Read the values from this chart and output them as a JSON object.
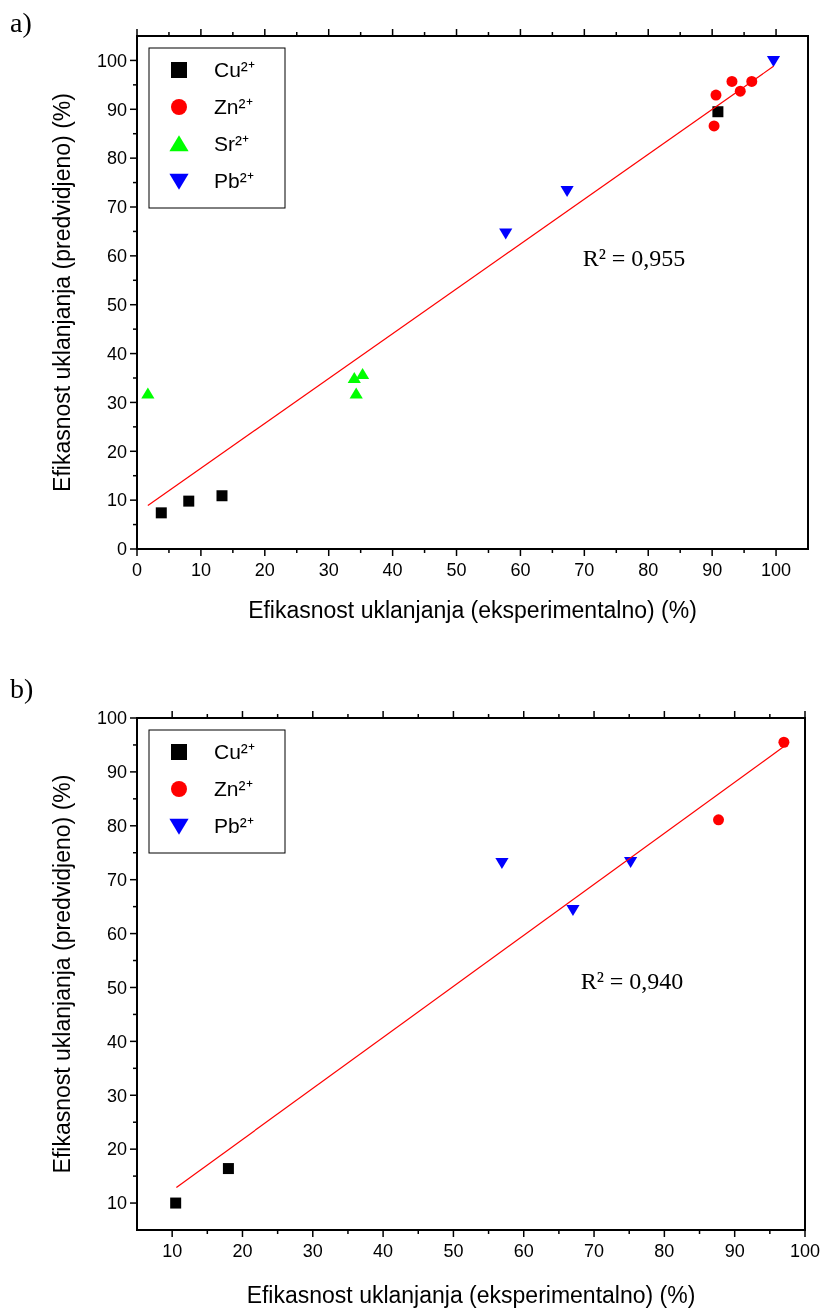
{
  "chart_data": [
    {
      "type": "scatter",
      "title": "a)",
      "xlabel": "Efikasnost uklanjanja (eksperimentalno) (%)",
      "ylabel": "Efikasnost uklanjanja (predvidjeno) (%)",
      "xlim": [
        0,
        105
      ],
      "ylim": [
        0,
        105
      ],
      "xticks": [
        0,
        {
          "value": 5,
          "label": null
        },
        10,
        {
          "value": 15,
          "label": null
        },
        20,
        {
          "value": 25,
          "label": null
        },
        30,
        {
          "value": 35,
          "label": null
        },
        40,
        {
          "value": 45,
          "label": null
        },
        50,
        {
          "value": 55,
          "label": null
        },
        60,
        {
          "value": 65,
          "label": null
        },
        70,
        {
          "value": 75,
          "label": null
        },
        80,
        {
          "value": 85,
          "label": null
        },
        90,
        {
          "value": 95,
          "label": null
        },
        100
      ],
      "yticks": [
        0,
        {
          "value": 5,
          "label": null
        },
        10,
        {
          "value": 15,
          "label": null
        },
        20,
        {
          "value": 25,
          "label": null
        },
        30,
        {
          "value": 35,
          "label": null
        },
        40,
        {
          "value": 45,
          "label": null
        },
        50,
        {
          "value": 55,
          "label": null
        },
        60,
        {
          "value": 65,
          "label": null
        },
        70,
        {
          "value": 75,
          "label": null
        },
        80,
        {
          "value": 85,
          "label": null
        },
        90,
        {
          "value": 95,
          "label": null
        },
        100
      ],
      "grid": false,
      "legend": "top left",
      "annotations": [
        "R² = 0,955"
      ],
      "series": [
        {
          "name": "Cu²⁺",
          "color": "#000000",
          "marker": "square",
          "x": [
            3.8,
            8.1,
            13.3,
            90.9
          ],
          "values": [
            7.4,
            9.8,
            10.9,
            89.5
          ]
        },
        {
          "name": "Zn²⁺",
          "color": "#ff0000",
          "marker": "circle",
          "x": [
            90.6,
            90.3,
            93.1,
            94.4,
            96.2
          ],
          "values": [
            92.9,
            86.6,
            95.7,
            93.7,
            95.7
          ]
        },
        {
          "name": "Sr²⁺",
          "color": "#00ff00",
          "marker": "triangle",
          "x": [
            1.7,
            34.0,
            35.3,
            34.3
          ],
          "values": [
            31.8,
            35.0,
            35.8,
            31.8
          ]
        },
        {
          "name": "Pb²⁺",
          "color": "#0000ff",
          "marker": "triangle-down",
          "x": [
            57.7,
            67.3,
            99.6
          ],
          "values": [
            64.6,
            73.3,
            99.9
          ]
        },
        {
          "type": "line",
          "color": "#ff0000",
          "marker": "none",
          "x": [
            1.7,
            99.6
          ],
          "values": [
            8.9,
            98.8
          ]
        }
      ]
    },
    {
      "type": "scatter",
      "title": "b)",
      "xlabel": "Efikasnost uklanjanja (eksperimentalno) (%)",
      "ylabel": "Efikasnost uklanjanja (predvidjeno) (%)",
      "xlim": [
        5,
        100
      ],
      "ylim": [
        5,
        100
      ],
      "xticks": [
        10,
        {
          "value": 15,
          "label": null
        },
        20,
        {
          "value": 25,
          "label": null
        },
        30,
        {
          "value": 35,
          "label": null
        },
        40,
        {
          "value": 45,
          "label": null
        },
        50,
        {
          "value": 55,
          "label": null
        },
        60,
        {
          "value": 65,
          "label": null
        },
        70,
        {
          "value": 75,
          "label": null
        },
        80,
        {
          "value": 85,
          "label": null
        },
        90,
        {
          "value": 95,
          "label": null
        },
        100
      ],
      "yticks": [
        10,
        {
          "value": 15,
          "label": null
        },
        20,
        {
          "value": 25,
          "label": null
        },
        30,
        {
          "value": 35,
          "label": null
        },
        40,
        {
          "value": 45,
          "label": null
        },
        50,
        {
          "value": 55,
          "label": null
        },
        60,
        {
          "value": 65,
          "label": null
        },
        70,
        {
          "value": 75,
          "label": null
        },
        80,
        {
          "value": 85,
          "label": null
        },
        90,
        {
          "value": 95,
          "label": null
        },
        100
      ],
      "grid": false,
      "legend": "top left",
      "annotations": [
        "R² = 0,940"
      ],
      "series": [
        {
          "name": "Cu²⁺",
          "color": "#000000",
          "marker": "square",
          "x": [
            10.5,
            18.0
          ],
          "values": [
            10.0,
            16.4
          ]
        },
        {
          "name": "Zn²⁺",
          "color": "#ff0000",
          "marker": "circle",
          "x": [
            87.7,
            97.0
          ],
          "values": [
            81.1,
            95.5
          ]
        },
        {
          "name": "Pb²⁺",
          "color": "#0000ff",
          "marker": "triangle-down",
          "x": [
            56.9,
            67.0,
            75.2
          ],
          "values": [
            73.1,
            64.4,
            73.3
          ]
        },
        {
          "type": "line",
          "color": "#ff0000",
          "marker": "none",
          "x": [
            10.6,
            97.0
          ],
          "values": [
            12.9,
            94.7
          ]
        }
      ]
    }
  ]
}
